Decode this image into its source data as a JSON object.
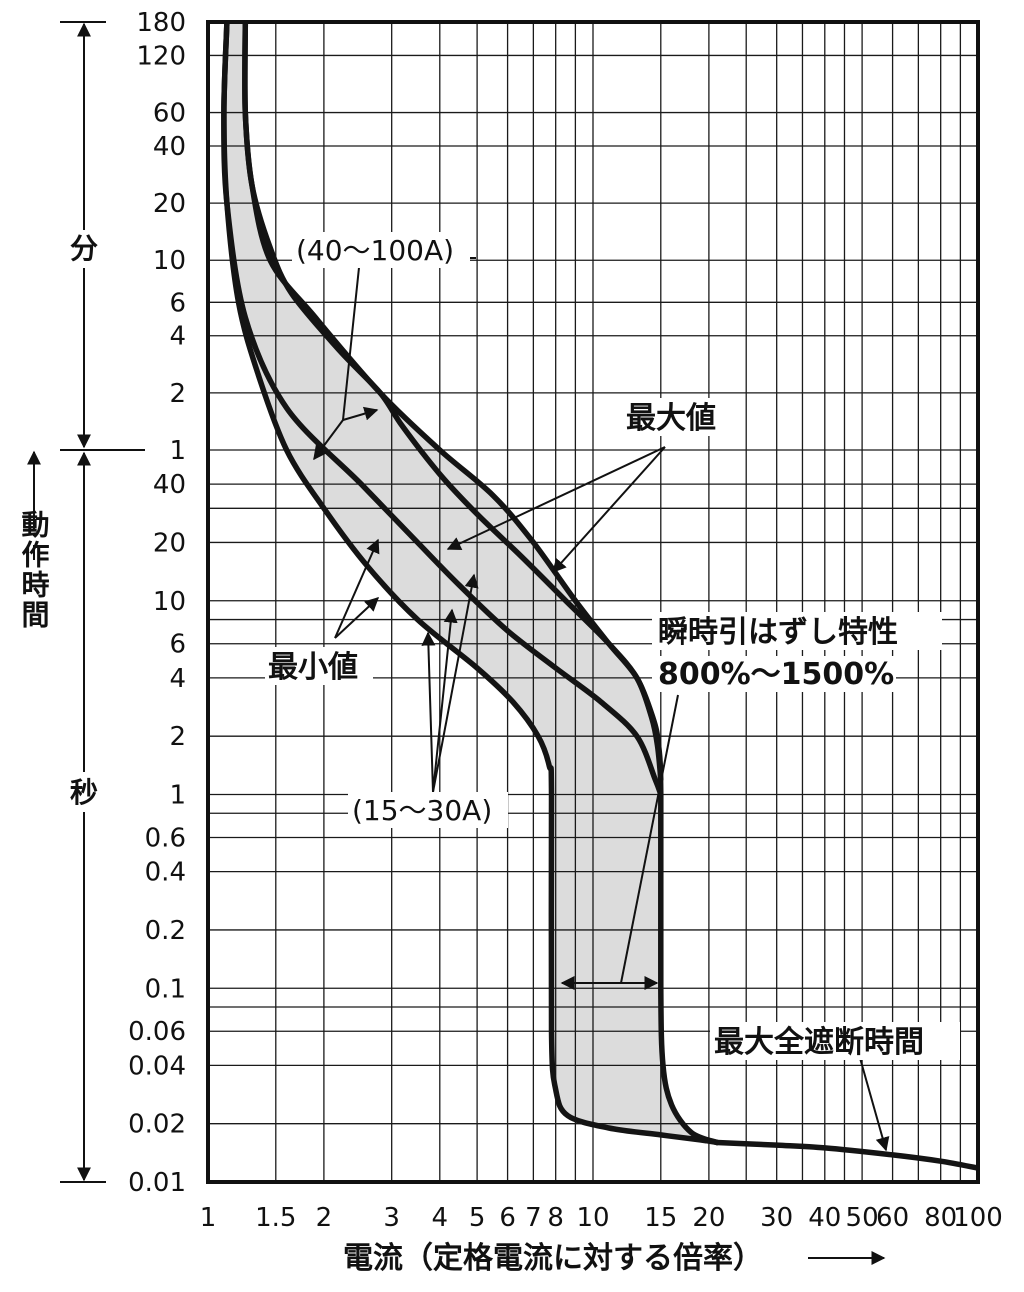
{
  "chart_data": {
    "type": "line",
    "title": "",
    "xlabel": "電流（定格電流に対する倍率）",
    "ylabel": "動作時間",
    "xscale": "log",
    "yscale": "log",
    "xlim": [
      1,
      100
    ],
    "ylim_seconds": [
      0.01,
      10800
    ],
    "x_ticks": [
      {
        "value": 1,
        "label": "1"
      },
      {
        "value": 1.5,
        "label": "1.5"
      },
      {
        "value": 2,
        "label": "2"
      },
      {
        "value": 3,
        "label": "3"
      },
      {
        "value": 4,
        "label": "4"
      },
      {
        "value": 5,
        "label": "5"
      },
      {
        "value": 6,
        "label": "6"
      },
      {
        "value": 7,
        "label": "7"
      },
      {
        "value": 8,
        "label": "8"
      },
      {
        "value": 10,
        "label": "10"
      },
      {
        "value": 15,
        "label": "15"
      },
      {
        "value": 20,
        "label": "20"
      },
      {
        "value": 30,
        "label": "30"
      },
      {
        "value": 40,
        "label": "40"
      },
      {
        "value": 50,
        "label": "50"
      },
      {
        "value": 60,
        "label": "60"
      },
      {
        "value": 80,
        "label": "80"
      },
      {
        "value": 100,
        "label": "100"
      }
    ],
    "y_ticks": [
      {
        "seconds": 10800,
        "label": "180"
      },
      {
        "seconds": 7200,
        "label": "120"
      },
      {
        "seconds": 3600,
        "label": "60"
      },
      {
        "seconds": 2400,
        "label": "40"
      },
      {
        "seconds": 1200,
        "label": "20"
      },
      {
        "seconds": 600,
        "label": "10"
      },
      {
        "seconds": 360,
        "label": "6"
      },
      {
        "seconds": 240,
        "label": "4"
      },
      {
        "seconds": 120,
        "label": "2"
      },
      {
        "seconds": 60,
        "label": "1"
      },
      {
        "seconds": 40,
        "label": "40"
      },
      {
        "seconds": 20,
        "label": "20"
      },
      {
        "seconds": 10,
        "label": "10"
      },
      {
        "seconds": 6,
        "label": "6"
      },
      {
        "seconds": 4,
        "label": "4"
      },
      {
        "seconds": 2,
        "label": "2"
      },
      {
        "seconds": 1,
        "label": "1"
      },
      {
        "seconds": 0.6,
        "label": "0.6"
      },
      {
        "seconds": 0.4,
        "label": "0.4"
      },
      {
        "seconds": 0.2,
        "label": "0.2"
      },
      {
        "seconds": 0.1,
        "label": "0.1"
      },
      {
        "seconds": 0.06,
        "label": "0.06"
      },
      {
        "seconds": 0.04,
        "label": "0.04"
      },
      {
        "seconds": 0.02,
        "label": "0.02"
      },
      {
        "seconds": 0.01,
        "label": "0.01"
      }
    ],
    "extra_x_gridlines": [
      9,
      25,
      35,
      45,
      70,
      90
    ],
    "extra_y_gridlines_seconds": [
      30,
      8,
      0.8,
      0.08
    ],
    "y_units": {
      "minutes": "分",
      "seconds": "秒"
    },
    "series": [
      {
        "name": "最小値",
        "group": "40〜100A",
        "points": [
          [
            1.12,
            10800
          ],
          [
            1.1,
            3600
          ],
          [
            1.12,
            1200
          ],
          [
            1.2,
            360
          ],
          [
            1.35,
            150
          ],
          [
            1.6,
            60
          ],
          [
            2.0,
            30
          ],
          [
            2.6,
            15
          ],
          [
            3.5,
            8
          ],
          [
            5.0,
            4.5
          ],
          [
            6.2,
            3
          ],
          [
            7.2,
            2
          ],
          [
            7.7,
            1.4
          ],
          [
            7.8,
            1
          ],
          [
            7.8,
            0.06
          ],
          [
            8.0,
            0.03
          ],
          [
            8.6,
            0.022
          ],
          [
            11,
            0.019
          ],
          [
            15,
            0.0175
          ],
          [
            19,
            0.0165
          ],
          [
            21,
            0.016
          ]
        ]
      },
      {
        "name": "最大値",
        "group": "40〜100A",
        "points": [
          [
            1.25,
            10800
          ],
          [
            1.25,
            3600
          ],
          [
            1.3,
            1500
          ],
          [
            1.45,
            600
          ],
          [
            1.9,
            300
          ],
          [
            2.8,
            120
          ],
          [
            4.0,
            60
          ],
          [
            5.5,
            35
          ],
          [
            7.0,
            20
          ],
          [
            9.0,
            10
          ],
          [
            11,
            6
          ],
          [
            13,
            4
          ],
          [
            14.3,
            2.5
          ],
          [
            14.8,
            1.8
          ],
          [
            15,
            1
          ],
          [
            15,
            0.1
          ],
          [
            15.2,
            0.04
          ],
          [
            16,
            0.025
          ],
          [
            18,
            0.018
          ],
          [
            21,
            0.016
          ]
        ]
      },
      {
        "name": "最小値",
        "group": "15〜30A",
        "points": [
          [
            1.12,
            10800
          ],
          [
            1.1,
            3600
          ],
          [
            1.12,
            1200
          ],
          [
            1.25,
            300
          ],
          [
            1.6,
            100
          ],
          [
            2.5,
            40
          ],
          [
            3.5,
            20
          ],
          [
            4.5,
            12
          ],
          [
            6.0,
            7
          ],
          [
            8.0,
            4.5
          ],
          [
            10.5,
            3
          ],
          [
            13,
            2
          ],
          [
            14.5,
            1.2
          ],
          [
            15,
            1
          ]
        ]
      },
      {
        "name": "最大値",
        "group": "15〜30A",
        "points": [
          [
            1.25,
            10800
          ],
          [
            1.25,
            3600
          ],
          [
            1.3,
            1500
          ],
          [
            1.45,
            700
          ],
          [
            1.65,
            400
          ],
          [
            2.2,
            200
          ],
          [
            2.8,
            120
          ],
          [
            3.2,
            80
          ],
          [
            4.0,
            45
          ],
          [
            5.0,
            28
          ],
          [
            6.5,
            17
          ],
          [
            8.5,
            10
          ],
          [
            11,
            6
          ],
          [
            13,
            4
          ],
          [
            14.2,
            2.5
          ],
          [
            14.7,
            1.8
          ],
          [
            15,
            1.2
          ]
        ]
      },
      {
        "name": "最大全遮断時間",
        "points": [
          [
            21,
            0.016
          ],
          [
            30,
            0.0155
          ],
          [
            40,
            0.015
          ],
          [
            60,
            0.0138
          ],
          [
            80,
            0.0128
          ],
          [
            100,
            0.0118
          ]
        ]
      }
    ],
    "annotations": {
      "range_large": "(40〜100A)",
      "range_small": "(15〜30A)",
      "max_label": "最大値",
      "min_label": "最小値",
      "instant_label": "瞬時引はずし特性",
      "instant_range": "800%〜1500%",
      "total_break_label": "最大全遮断時間"
    },
    "colors": {
      "curve": "#141414",
      "band": "#dcdcdc",
      "grid": "#1a1a1a"
    },
    "grid": true
  }
}
